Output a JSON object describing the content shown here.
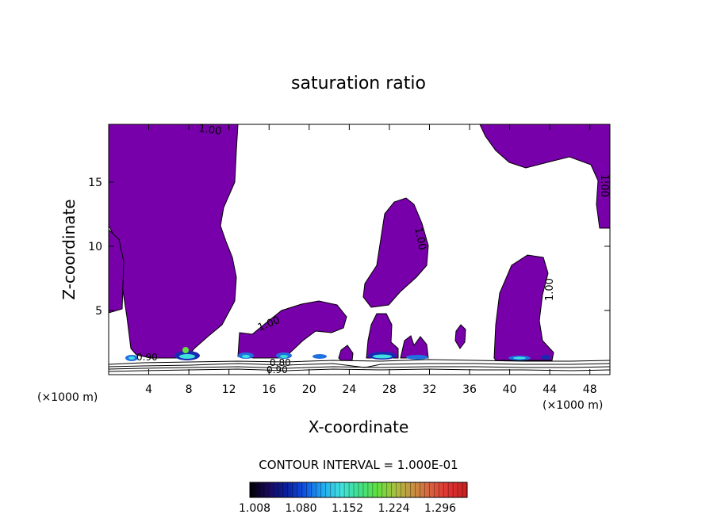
{
  "chart_data": {
    "type": "contour",
    "title": "saturation ratio",
    "xlabel": "X-coordinate",
    "ylabel": "Z-coordinate",
    "x_unit_left": "(×1000 m)",
    "x_unit_right": "(×1000 m)",
    "xlim": [
      0,
      50
    ],
    "ylim": [
      0,
      19.5
    ],
    "x_ticks": [
      4,
      8,
      12,
      16,
      20,
      24,
      28,
      32,
      36,
      40,
      44,
      48
    ],
    "y_ticks": [
      5,
      10,
      15
    ],
    "contour_labels": [
      "1.00",
      "1.00",
      "1.00",
      "1.00",
      "1.00",
      "0.90",
      "0.80",
      "0.90"
    ],
    "contour_interval_text": "CONTOUR INTERVAL = 1.000E-01",
    "colorbar": {
      "tick_labels": [
        "1.008",
        "1.080",
        "1.152",
        "1.224",
        "1.296"
      ],
      "colors": [
        "#000000",
        "#1a0a5a",
        "#0a1e9c",
        "#1050e0",
        "#20a8f0",
        "#40e0e0",
        "#40e090",
        "#60e040",
        "#a8c040",
        "#c89040",
        "#d86040",
        "#e03030",
        "#c82020"
      ]
    },
    "fill_color": "#7800aa",
    "grid": false
  }
}
